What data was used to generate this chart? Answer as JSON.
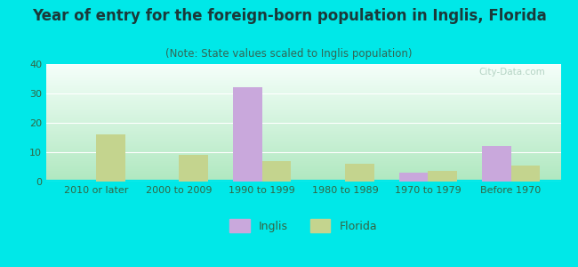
{
  "title": "Year of entry for the foreign-born population in Inglis, Florida",
  "subtitle": "(Note: State values scaled to Inglis population)",
  "categories": [
    "2010 or later",
    "2000 to 2009",
    "1990 to 1999",
    "1980 to 1989",
    "1970 to 1979",
    "Before 1970"
  ],
  "inglis_values": [
    0,
    0,
    32,
    0,
    3,
    12
  ],
  "florida_values": [
    16,
    9,
    7,
    6,
    3.5,
    5.5
  ],
  "inglis_color": "#c9a8dc",
  "florida_color": "#c4d48e",
  "background_outer": "#00e8e8",
  "background_inner_top": "#f5fffa",
  "background_inner_bottom": "#b0e8c0",
  "ylim": [
    0,
    40
  ],
  "yticks": [
    0,
    10,
    20,
    30,
    40
  ],
  "bar_width": 0.35,
  "title_fontsize": 12,
  "subtitle_fontsize": 8.5,
  "tick_fontsize": 8,
  "legend_fontsize": 9
}
